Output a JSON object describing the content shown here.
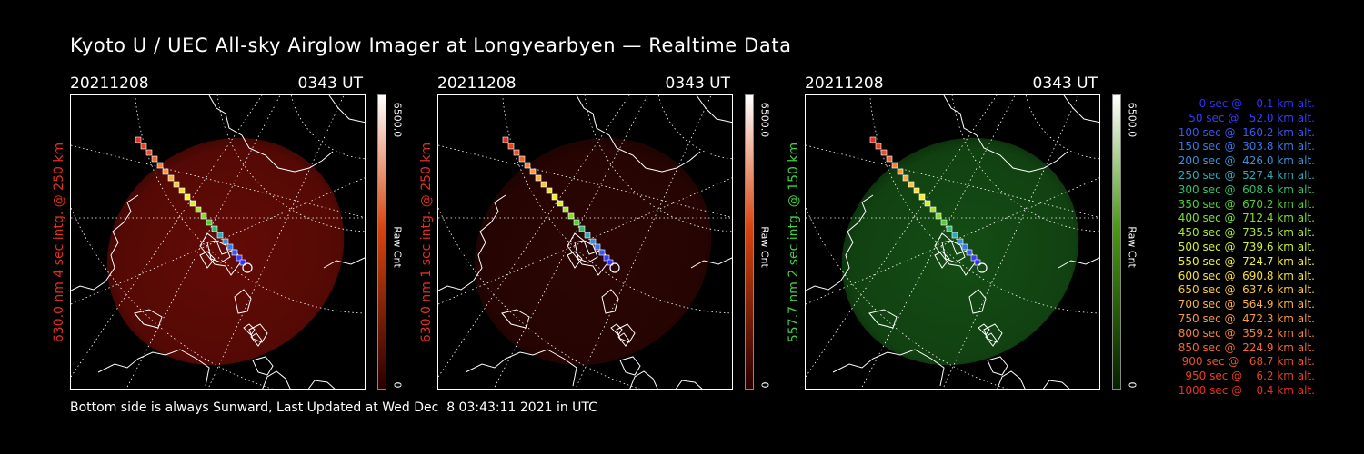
{
  "title": "Kyoto U / UEC All-sky Airglow Imager at Longyearbyen — Realtime Data",
  "panels": [
    {
      "date": "20211208",
      "time": "0343 UT",
      "side_label": "630.0 nm 4 sec intg. @ 250 km",
      "side_color": "#e03020",
      "colorbar_max": "6500.0",
      "colorbar_min": "0",
      "colorbar_unit": "Raw Cnt",
      "glow_color": "#8a0f08",
      "glow_opacity": 0.72,
      "bar_top": "#ffffff",
      "bar_mid": "#d94410",
      "bar_bottom": "#2a0000"
    },
    {
      "date": "20211208",
      "time": "0343 UT",
      "side_label": "630.0 nm 1 sec intg. @ 250 km",
      "side_color": "#e03020",
      "colorbar_max": "6500.0",
      "colorbar_min": "0",
      "colorbar_unit": "Raw Cnt",
      "glow_color": "#3a0704",
      "glow_opacity": 0.75,
      "bar_top": "#ffffff",
      "bar_mid": "#d94410",
      "bar_bottom": "#2a0000"
    },
    {
      "date": "20211208",
      "time": "0343 UT",
      "side_label": "557.7 nm 2 sec intg. @ 150 km",
      "side_color": "#40d040",
      "colorbar_max": "6500.0",
      "colorbar_min": "0",
      "colorbar_unit": "Raw Cnt",
      "glow_color": "#1c6a1c",
      "glow_opacity": 0.72,
      "bar_top": "#ffffff",
      "bar_mid": "#4a9a10",
      "bar_bottom": "#062000"
    }
  ],
  "legend": [
    {
      "text": "   0 sec @    0.1 km alt.",
      "color": "#3030ff"
    },
    {
      "text": "  50 sec @   52.0 km alt.",
      "color": "#3a3aff"
    },
    {
      "text": " 100 sec @  160.2 km alt.",
      "color": "#3858f0"
    },
    {
      "text": " 150 sec @  303.8 km alt.",
      "color": "#3878e8"
    },
    {
      "text": " 200 sec @  426.0 km alt.",
      "color": "#3890d8"
    },
    {
      "text": " 250 sec @  527.4 km alt.",
      "color": "#30a8b8"
    },
    {
      "text": " 300 sec @  608.6 km alt.",
      "color": "#30c070"
    },
    {
      "text": " 350 sec @  670.2 km alt.",
      "color": "#50d030"
    },
    {
      "text": " 400 sec @  712.4 km alt.",
      "color": "#80e030"
    },
    {
      "text": " 450 sec @  735.5 km alt.",
      "color": "#a8e830"
    },
    {
      "text": " 500 sec @  739.6 km alt.",
      "color": "#d0f030"
    },
    {
      "text": " 550 sec @  724.7 km alt.",
      "color": "#f0f030"
    },
    {
      "text": " 600 sec @  690.8 km alt.",
      "color": "#f8e030"
    },
    {
      "text": " 650 sec @  637.6 km alt.",
      "color": "#f8c838"
    },
    {
      "text": " 700 sec @  564.9 km alt.",
      "color": "#f8b040"
    },
    {
      "text": " 750 sec @  472.3 km alt.",
      "color": "#f89840"
    },
    {
      "text": " 800 sec @  359.2 km alt.",
      "color": "#f88038"
    },
    {
      "text": " 850 sec @  224.9 km alt.",
      "color": "#f06830"
    },
    {
      "text": " 900 sec @   68.7 km alt.",
      "color": "#e85028"
    },
    {
      "text": " 950 sec @    6.2 km alt.",
      "color": "#e84020"
    },
    {
      "text": "1000 sec @    0.4 km alt.",
      "color": "#e83020"
    }
  ],
  "footer": "Bottom side is always Sunward, Last Updated at Wed Dec  8 03:43:11 2021 in UTC"
}
